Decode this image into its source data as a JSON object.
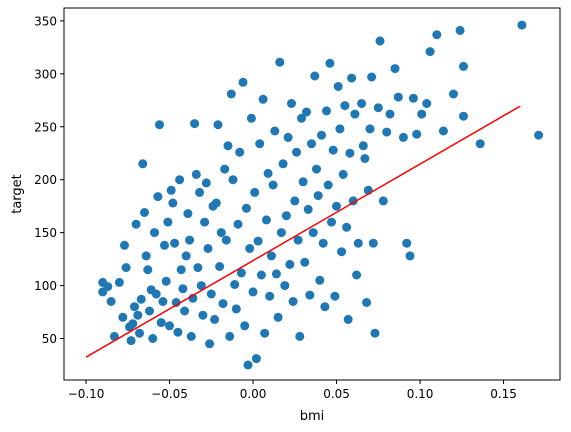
{
  "chart_data": {
    "type": "scatter",
    "xlabel": "bmi",
    "ylabel": "target",
    "xlim": [
      -0.1132,
      0.1838
    ],
    "ylim": [
      10.8,
      362.2
    ],
    "xticks": [
      -0.1,
      -0.05,
      0.0,
      0.05,
      0.1,
      0.15
    ],
    "xtick_labels": [
      "−0.10",
      "−0.05",
      "0.00",
      "0.05",
      "0.10",
      "0.15"
    ],
    "yticks": [
      50,
      100,
      150,
      200,
      250,
      300,
      350
    ],
    "ytick_labels": [
      "50",
      "100",
      "150",
      "200",
      "250",
      "300",
      "350"
    ],
    "grid": false,
    "colors": {
      "points": "#1f77b4",
      "fit_line": "#ff0000"
    },
    "series": [
      {
        "type": "scatter",
        "points": [
          [
            -0.09,
            103
          ],
          [
            -0.09,
            94
          ],
          [
            -0.087,
            99
          ],
          [
            -0.085,
            85
          ],
          [
            -0.083,
            52
          ],
          [
            -0.08,
            103
          ],
          [
            -0.078,
            70
          ],
          [
            -0.077,
            138
          ],
          [
            -0.076,
            117
          ],
          [
            -0.074,
            61
          ],
          [
            -0.073,
            48
          ],
          [
            -0.072,
            64
          ],
          [
            -0.071,
            80
          ],
          [
            -0.07,
            158
          ],
          [
            -0.069,
            72
          ],
          [
            -0.068,
            55
          ],
          [
            -0.067,
            87
          ],
          [
            -0.066,
            215
          ],
          [
            -0.065,
            169
          ],
          [
            -0.064,
            128
          ],
          [
            -0.063,
            115
          ],
          [
            -0.062,
            76
          ],
          [
            -0.061,
            96
          ],
          [
            -0.06,
            50
          ],
          [
            -0.059,
            150
          ],
          [
            -0.058,
            92
          ],
          [
            -0.057,
            184
          ],
          [
            -0.056,
            252
          ],
          [
            -0.055,
            65
          ],
          [
            -0.054,
            85
          ],
          [
            -0.053,
            138
          ],
          [
            -0.052,
            104
          ],
          [
            -0.051,
            160
          ],
          [
            -0.05,
            62
          ],
          [
            -0.049,
            190
          ],
          [
            -0.048,
            178
          ],
          [
            -0.047,
            140
          ],
          [
            -0.046,
            84
          ],
          [
            -0.045,
            56
          ],
          [
            -0.044,
            200
          ],
          [
            -0.043,
            115
          ],
          [
            -0.042,
            97
          ],
          [
            -0.041,
            76
          ],
          [
            -0.04,
            128
          ],
          [
            -0.039,
            168
          ],
          [
            -0.038,
            143
          ],
          [
            -0.037,
            52
          ],
          [
            -0.036,
            88
          ],
          [
            -0.035,
            253
          ],
          [
            -0.034,
            205
          ],
          [
            -0.033,
            117
          ],
          [
            -0.032,
            188
          ],
          [
            -0.031,
            100
          ],
          [
            -0.03,
            72
          ],
          [
            -0.029,
            160
          ],
          [
            -0.028,
            197
          ],
          [
            -0.027,
            135
          ],
          [
            -0.026,
            45
          ],
          [
            -0.025,
            92
          ],
          [
            -0.024,
            175
          ],
          [
            -0.023,
            68
          ],
          [
            -0.022,
            178
          ],
          [
            -0.021,
            252
          ],
          [
            -0.02,
            118
          ],
          [
            -0.019,
            150
          ],
          [
            -0.018,
            83
          ],
          [
            -0.017,
            210
          ],
          [
            -0.016,
            143
          ],
          [
            -0.015,
            232
          ],
          [
            -0.014,
            52
          ],
          [
            -0.013,
            281
          ],
          [
            -0.012,
            200
          ],
          [
            -0.011,
            101
          ],
          [
            -0.01,
            78
          ],
          [
            -0.009,
            158
          ],
          [
            -0.008,
            226
          ],
          [
            -0.007,
            112
          ],
          [
            -0.006,
            292
          ],
          [
            -0.005,
            62
          ],
          [
            -0.004,
            173
          ],
          [
            -0.003,
            25
          ],
          [
            -0.002,
            135
          ],
          [
            -0.001,
            258
          ],
          [
            0.0,
            94
          ],
          [
            0.001,
            188
          ],
          [
            0.002,
            31
          ],
          [
            0.003,
            142
          ],
          [
            0.004,
            234
          ],
          [
            0.005,
            110
          ],
          [
            0.006,
            276
          ],
          [
            0.007,
            55
          ],
          [
            0.008,
            162
          ],
          [
            0.009,
            206
          ],
          [
            0.01,
            90
          ],
          [
            0.011,
            128
          ],
          [
            0.012,
            195
          ],
          [
            0.013,
            246
          ],
          [
            0.014,
            111
          ],
          [
            0.015,
            70
          ],
          [
            0.016,
            311
          ],
          [
            0.017,
            150
          ],
          [
            0.018,
            215
          ],
          [
            0.019,
            100
          ],
          [
            0.02,
            166
          ],
          [
            0.021,
            240
          ],
          [
            0.022,
            120
          ],
          [
            0.023,
            272
          ],
          [
            0.024,
            85
          ],
          [
            0.025,
            180
          ],
          [
            0.026,
            226
          ],
          [
            0.027,
            143
          ],
          [
            0.028,
            52
          ],
          [
            0.029,
            258
          ],
          [
            0.03,
            198
          ],
          [
            0.031,
            122
          ],
          [
            0.032,
            264
          ],
          [
            0.033,
            172
          ],
          [
            0.034,
            91
          ],
          [
            0.035,
            234
          ],
          [
            0.036,
            150
          ],
          [
            0.037,
            298
          ],
          [
            0.038,
            210
          ],
          [
            0.039,
            185
          ],
          [
            0.04,
            105
          ],
          [
            0.041,
            242
          ],
          [
            0.042,
            140
          ],
          [
            0.043,
            80
          ],
          [
            0.044,
            265
          ],
          [
            0.045,
            195
          ],
          [
            0.046,
            310
          ],
          [
            0.047,
            160
          ],
          [
            0.048,
            228
          ],
          [
            0.049,
            90
          ],
          [
            0.05,
            175
          ],
          [
            0.051,
            288
          ],
          [
            0.052,
            248
          ],
          [
            0.053,
            132
          ],
          [
            0.054,
            205
          ],
          [
            0.055,
            270
          ],
          [
            0.056,
            155
          ],
          [
            0.057,
            68
          ],
          [
            0.058,
            225
          ],
          [
            0.059,
            296
          ],
          [
            0.06,
            180
          ],
          [
            0.061,
            262
          ],
          [
            0.062,
            110
          ],
          [
            0.063,
            140
          ],
          [
            0.065,
            272
          ],
          [
            0.066,
            232
          ],
          [
            0.067,
            220
          ],
          [
            0.068,
            84
          ],
          [
            0.069,
            190
          ],
          [
            0.07,
            248
          ],
          [
            0.071,
            297
          ],
          [
            0.072,
            140
          ],
          [
            0.073,
            55
          ],
          [
            0.075,
            268
          ],
          [
            0.076,
            331
          ],
          [
            0.078,
            180
          ],
          [
            0.08,
            245
          ],
          [
            0.082,
            262
          ],
          [
            0.085,
            305
          ],
          [
            0.087,
            278
          ],
          [
            0.09,
            240
          ],
          [
            0.092,
            140
          ],
          [
            0.094,
            128
          ],
          [
            0.096,
            277
          ],
          [
            0.098,
            243
          ],
          [
            0.101,
            262
          ],
          [
            0.104,
            272
          ],
          [
            0.106,
            321
          ],
          [
            0.11,
            337
          ],
          [
            0.114,
            246
          ],
          [
            0.12,
            281
          ],
          [
            0.124,
            341
          ],
          [
            0.126,
            260
          ],
          [
            0.126,
            307
          ],
          [
            0.136,
            234
          ],
          [
            0.161,
            346
          ],
          [
            0.171,
            242
          ]
        ]
      },
      {
        "type": "line",
        "points": [
          [
            -0.1,
            32.3
          ],
          [
            0.16,
            269.5
          ]
        ]
      }
    ]
  }
}
